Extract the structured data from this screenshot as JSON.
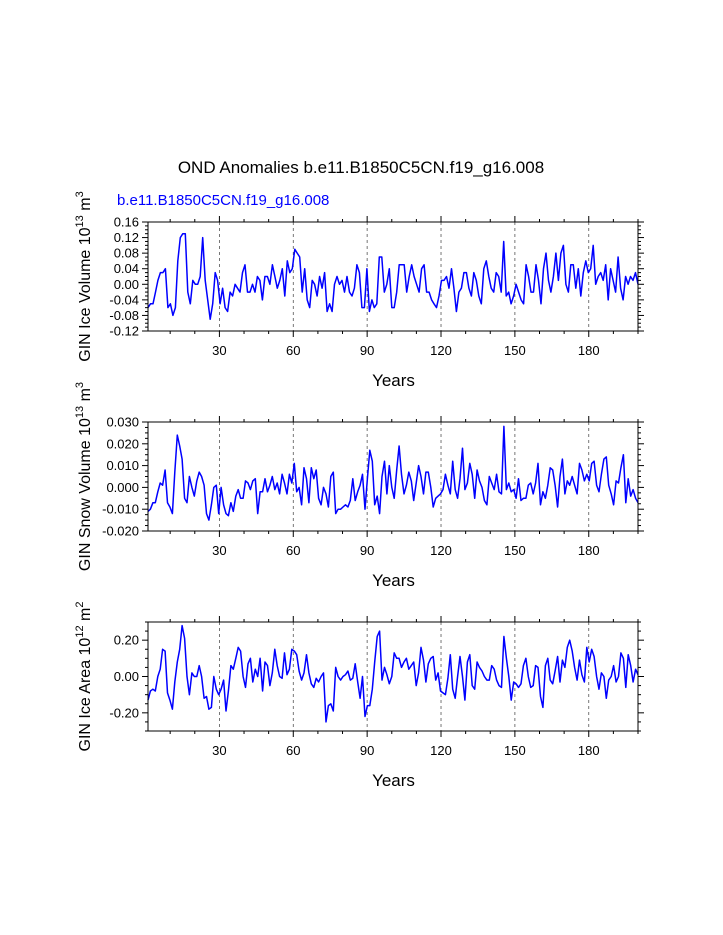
{
  "main_title": "OND Anomalies b.e11.B1850C5CN.f19_g16.008",
  "case_label": "b.e11.B1850C5CN.f19_g16.008",
  "case_color": "#0000ff",
  "series_color": "#0000ff",
  "chart_data": [
    {
      "type": "line",
      "title": "",
      "xlabel": "Years",
      "ylabel_main": "GIN Ice Volume 10",
      "ylabel_exp": "13",
      "ylabel_unit": "m",
      "ylabel_unit_exp": "3",
      "xlim": [
        1,
        200
      ],
      "ylim": [
        -0.12,
        0.16
      ],
      "x_ticks": [
        30,
        60,
        90,
        120,
        150,
        180
      ],
      "y_ticks": [
        -0.12,
        -0.08,
        -0.04,
        0.0,
        0.04,
        0.08,
        0.12,
        0.16
      ],
      "y_tick_labels": [
        "-0.12",
        "-0.08",
        "-0.04",
        "0.00",
        "0.04",
        "0.08",
        "0.12",
        "0.16"
      ],
      "x_tick_labels": [
        "30",
        "60",
        "90",
        "120",
        "150",
        "180"
      ],
      "grid": "dashed vertical at x ticks",
      "series": [
        {
          "name": "b.e11.B1850C5CN.f19_g16.008",
          "values": [
            -0.06,
            -0.05,
            -0.05,
            -0.02,
            0.01,
            0.03,
            0.03,
            0.04,
            -0.06,
            -0.05,
            -0.08,
            -0.06,
            0.06,
            0.12,
            0.13,
            0.13,
            -0.02,
            -0.05,
            0.01,
            0.0,
            0.0,
            0.02,
            0.12,
            0.01,
            -0.04,
            -0.09,
            -0.05,
            0.03,
            0.01,
            -0.05,
            -0.01,
            -0.06,
            -0.07,
            -0.02,
            -0.03,
            0.0,
            -0.01,
            -0.02,
            0.03,
            0.05,
            -0.02,
            -0.02,
            0.0,
            -0.02,
            0.02,
            0.01,
            -0.04,
            0.02,
            0.02,
            0.0,
            0.05,
            0.02,
            -0.01,
            0.01,
            0.04,
            -0.03,
            0.06,
            0.03,
            0.04,
            0.09,
            0.08,
            0.07,
            -0.02,
            0.04,
            -0.04,
            -0.06,
            0.01,
            0.0,
            -0.03,
            0.02,
            -0.01,
            0.03,
            -0.07,
            -0.05,
            -0.07,
            0.0,
            0.02,
            0.0,
            0.01,
            -0.02,
            0.02,
            -0.02,
            -0.03,
            -0.01,
            0.05,
            0.03,
            -0.06,
            -0.06,
            0.04,
            -0.07,
            -0.04,
            -0.06,
            -0.05,
            0.07,
            0.07,
            -0.02,
            0.0,
            0.04,
            -0.06,
            -0.06,
            -0.02,
            0.05,
            0.05,
            0.05,
            -0.02,
            0.02,
            0.05,
            0.02,
            0.0,
            -0.02,
            0.04,
            0.05,
            -0.02,
            -0.02,
            -0.04,
            -0.05,
            -0.06,
            -0.03,
            0.01,
            0.01,
            0.02,
            -0.01,
            0.04,
            -0.01,
            -0.07,
            -0.02,
            -0.01,
            0.03,
            0.03,
            -0.01,
            -0.03,
            0.03,
            0.01,
            -0.03,
            -0.05,
            0.04,
            0.06,
            0.02,
            -0.01,
            -0.02,
            0.03,
            0.02,
            -0.02,
            0.11,
            -0.03,
            -0.02,
            -0.05,
            -0.03,
            0.0,
            -0.02,
            -0.04,
            -0.05,
            0.05,
            0.02,
            -0.02,
            -0.02,
            0.05,
            0.01,
            -0.05,
            0.04,
            0.08,
            0.01,
            -0.02,
            0.02,
            0.08,
            0.01,
            0.08,
            0.1,
            0.0,
            -0.02,
            0.05,
            0.05,
            -0.01,
            0.04,
            -0.03,
            0.03,
            0.06,
            0.03,
            0.04,
            0.1,
            0.0,
            0.02,
            0.03,
            0.01,
            0.05,
            -0.04,
            0.04,
            0.01,
            -0.02,
            0.07,
            -0.01,
            -0.04,
            0.02,
            0.0,
            0.02,
            0.01,
            0.03,
            0.0
          ]
        }
      ]
    },
    {
      "type": "line",
      "title": "",
      "xlabel": "Years",
      "ylabel_main": "GIN Snow Volume 10",
      "ylabel_exp": "13",
      "ylabel_unit": "m",
      "ylabel_unit_exp": "3",
      "xlim": [
        1,
        200
      ],
      "ylim": [
        -0.02,
        0.03
      ],
      "x_ticks": [
        30,
        60,
        90,
        120,
        150,
        180
      ],
      "y_ticks": [
        -0.02,
        -0.01,
        0.0,
        0.01,
        0.02,
        0.03
      ],
      "y_tick_labels": [
        "-0.020",
        "-0.010",
        "0.000",
        "0.010",
        "0.020",
        "0.030"
      ],
      "x_tick_labels": [
        "30",
        "60",
        "90",
        "120",
        "150",
        "180"
      ],
      "grid": "dashed vertical at x ticks",
      "series": [
        {
          "name": "b.e11.B1850C5CN.f19_g16.008",
          "values": [
            -0.011,
            -0.01,
            -0.007,
            -0.007,
            -0.002,
            0.002,
            0.001,
            0.008,
            -0.007,
            -0.009,
            -0.012,
            0.007,
            0.024,
            0.019,
            0.013,
            -0.005,
            -0.007,
            0.005,
            0.0,
            -0.004,
            0.003,
            0.007,
            0.005,
            0.001,
            -0.012,
            -0.015,
            -0.008,
            0.0,
            0.001,
            -0.012,
            0.0,
            -0.008,
            -0.012,
            -0.013,
            -0.007,
            -0.011,
            -0.004,
            -0.001,
            -0.005,
            -0.005,
            0.003,
            0.002,
            -0.001,
            0.003,
            0.004,
            -0.012,
            -0.002,
            -0.002,
            0.004,
            -0.002,
            0.001,
            0.005,
            -0.001,
            0.002,
            -0.003,
            0.006,
            0.002,
            -0.003,
            0.006,
            0.002,
            0.011,
            -0.002,
            0.0,
            -0.008,
            0.009,
            0.004,
            -0.007,
            0.009,
            0.004,
            0.008,
            -0.005,
            -0.008,
            0.0,
            -0.003,
            -0.009,
            0.005,
            0.007,
            -0.012,
            -0.01,
            -0.01,
            -0.009,
            -0.008,
            -0.009,
            -0.006,
            0.004,
            -0.006,
            -0.002,
            0.001,
            0.006,
            -0.01,
            0.004,
            0.017,
            0.012,
            -0.008,
            -0.004,
            -0.012,
            0.005,
            0.012,
            -0.003,
            0.01,
            0.0,
            -0.005,
            0.008,
            0.019,
            0.006,
            -0.003,
            0.001,
            0.007,
            0.003,
            -0.006,
            0.002,
            0.01,
            0.005,
            -0.003,
            0.007,
            0.007,
            0.0,
            -0.009,
            -0.005,
            -0.004,
            -0.003,
            -0.001,
            0.006,
            0.001,
            -0.003,
            0.012,
            -0.001,
            -0.005,
            0.004,
            0.018,
            -0.001,
            0.002,
            0.011,
            0.006,
            -0.005,
            0.008,
            0.003,
            0.0,
            -0.006,
            -0.008,
            0.005,
            0.002,
            -0.001,
            0.006,
            -0.002,
            -0.003,
            0.028,
            -0.001,
            0.002,
            -0.002,
            -0.001,
            -0.005,
            0.004,
            -0.006,
            -0.005,
            -0.005,
            0.001,
            0.002,
            -0.003,
            0.002,
            0.011,
            -0.008,
            -0.002,
            -0.005,
            0.001,
            0.009,
            0.008,
            0.001,
            -0.009,
            0.005,
            0.013,
            -0.003,
            0.003,
            0.001,
            0.005,
            0.001,
            -0.003,
            0.011,
            0.008,
            0.003,
            0.006,
            0.003,
            0.011,
            0.012,
            0.001,
            -0.002,
            0.006,
            0.013,
            0.014,
            0.001,
            -0.003,
            -0.008,
            0.003,
            0.002,
            0.009,
            0.015,
            -0.007,
            0.004,
            -0.004,
            -0.001,
            -0.005,
            -0.007
          ]
        }
      ]
    },
    {
      "type": "line",
      "title": "",
      "xlabel": "Years",
      "ylabel_main": "GIN Ice Area 10",
      "ylabel_exp": "12",
      "ylabel_unit": "m",
      "ylabel_unit_exp": "2",
      "xlim": [
        1,
        200
      ],
      "ylim": [
        -0.3,
        0.3
      ],
      "x_ticks": [
        30,
        60,
        90,
        120,
        150,
        180
      ],
      "y_ticks": [
        -0.2,
        0.0,
        0.2
      ],
      "y_tick_labels": [
        "-0.20",
        "0.00",
        "0.20"
      ],
      "x_tick_labels": [
        "30",
        "60",
        "90",
        "120",
        "150",
        "180"
      ],
      "grid": "dashed vertical at x ticks",
      "series": [
        {
          "name": "b.e11.B1850C5CN.f19_g16.008",
          "values": [
            -0.13,
            -0.08,
            -0.07,
            -0.08,
            0.0,
            0.04,
            0.15,
            0.14,
            -0.09,
            -0.13,
            -0.18,
            -0.03,
            0.08,
            0.15,
            0.28,
            0.21,
            0.0,
            -0.1,
            0.02,
            0.0,
            0.0,
            0.06,
            0.0,
            -0.12,
            -0.11,
            -0.18,
            -0.17,
            0.0,
            -0.07,
            -0.1,
            -0.07,
            -0.02,
            -0.19,
            -0.08,
            0.06,
            0.04,
            0.1,
            0.16,
            0.14,
            0.0,
            -0.06,
            0.07,
            0.1,
            -0.03,
            0.04,
            0.0,
            0.1,
            -0.08,
            0.08,
            0.06,
            -0.05,
            0.02,
            0.15,
            0.06,
            0.0,
            -0.01,
            0.13,
            0.01,
            0.04,
            0.15,
            0.14,
            0.12,
            0.03,
            -0.02,
            0.02,
            0.12,
            0.02,
            -0.04,
            -0.06,
            -0.01,
            -0.03,
            0.0,
            0.02,
            -0.25,
            -0.16,
            -0.15,
            -0.19,
            0.05,
            0.0,
            -0.02,
            0.0,
            0.01,
            0.03,
            -0.02,
            -0.01,
            0.07,
            -0.03,
            -0.12,
            0.0,
            -0.22,
            -0.16,
            -0.16,
            -0.07,
            0.08,
            0.22,
            0.25,
            -0.02,
            0.05,
            0.01,
            -0.04,
            0.0,
            0.13,
            0.1,
            0.1,
            0.05,
            0.08,
            0.1,
            0.04,
            0.06,
            0.08,
            -0.05,
            0.02,
            0.16,
            0.09,
            -0.03,
            0.07,
            0.1,
            0.11,
            -0.02,
            0.02,
            -0.08,
            -0.09,
            -0.1,
            -0.01,
            0.12,
            -0.07,
            -0.12,
            0.0,
            0.11,
            0.0,
            -0.13,
            0.08,
            0.12,
            -0.05,
            -0.07,
            0.08,
            0.05,
            0.03,
            0.0,
            -0.02,
            -0.02,
            0.06,
            0.04,
            -0.02,
            -0.05,
            -0.06,
            0.22,
            0.1,
            0.0,
            -0.13,
            -0.03,
            -0.04,
            -0.06,
            -0.04,
            0.06,
            0.1,
            0.0,
            -0.06,
            -0.05,
            0.06,
            0.05,
            -0.11,
            -0.17,
            0.06,
            0.1,
            -0.02,
            -0.04,
            0.03,
            0.11,
            -0.03,
            0.09,
            0.05,
            0.16,
            0.2,
            0.14,
            0.05,
            -0.02,
            0.09,
            0.01,
            -0.03,
            0.16,
            0.08,
            0.15,
            0.11,
            0.0,
            -0.07,
            0.02,
            0.0,
            -0.12,
            -0.02,
            0.0,
            0.06,
            -0.03,
            0.0,
            0.13,
            0.1,
            -0.06,
            0.12,
            0.06,
            -0.03,
            0.04,
            0.01
          ]
        }
      ]
    }
  ]
}
